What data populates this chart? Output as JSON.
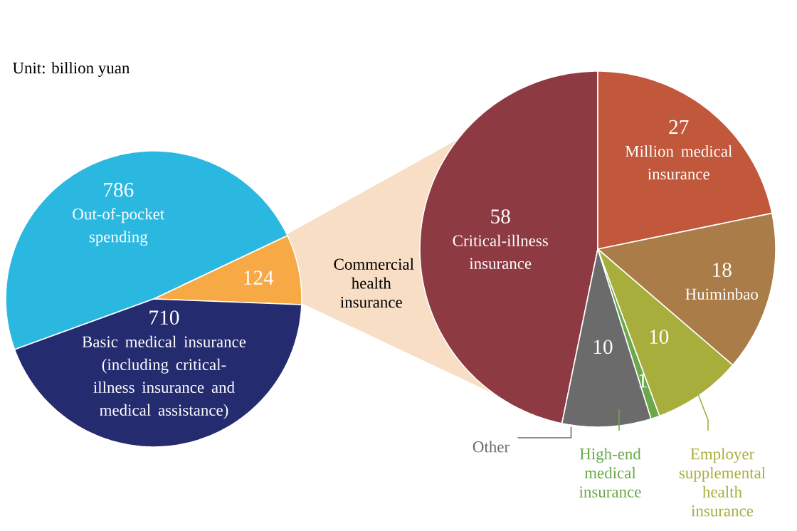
{
  "chart_data": [
    {
      "type": "pie",
      "categories": [
        "Out-of-pocket spending",
        "Commercial health insurance",
        "Basic medical insurance (including critical-illness insurance and medical assistance)"
      ],
      "values": [
        786,
        124,
        710
      ],
      "colors": [
        "#2ab7e0",
        "#f6a945",
        "#252b6f"
      ],
      "data_labels": true,
      "annotations": [
        "Unit: billion yuan"
      ]
    },
    {
      "type": "pie",
      "categories": [
        "Critical-illness insurance",
        "Million medical insurance",
        "Huiminbao",
        "Employer supplemental health insurance",
        "High-end medical insurance",
        "Other"
      ],
      "values": [
        58,
        27,
        18,
        10,
        1,
        10
      ],
      "colors": [
        "#8e3a42",
        "#c1573b",
        "#a97c48",
        "#a8ae3c",
        "#6aa84a",
        "#6b6b6b"
      ],
      "data_labels": true
    }
  ]
}
